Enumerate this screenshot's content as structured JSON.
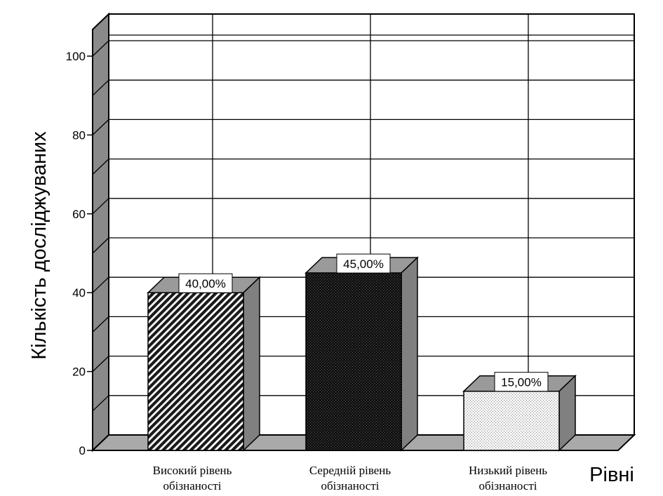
{
  "chart_data": {
    "type": "bar",
    "title": "",
    "ylabel": "Кількість досліджуваних",
    "xlabel": "Рівні",
    "ylim": [
      0,
      105
    ],
    "yticks": [
      0,
      20,
      40,
      60,
      80,
      100
    ],
    "grid": true,
    "three_d": true,
    "categories": [
      [
        "Високий рівень",
        "обізнаності"
      ],
      [
        "Середній рівень",
        "обізнаності"
      ],
      [
        "Низький рівень",
        "обізнаності"
      ]
    ],
    "values": [
      40,
      45,
      15
    ],
    "data_labels": [
      "40,00%",
      "45,00%",
      "15,00%"
    ],
    "bar_patterns": [
      "diagonal-hatch",
      "dense-dark",
      "light-dots"
    ],
    "colors": {
      "wall": "#ffffff",
      "side_wall": "#8a8a8a",
      "floor": "#a9a9a9",
      "bar_top": "#9a9a9a",
      "bar_side": "#808080",
      "grid": "#000000"
    }
  }
}
